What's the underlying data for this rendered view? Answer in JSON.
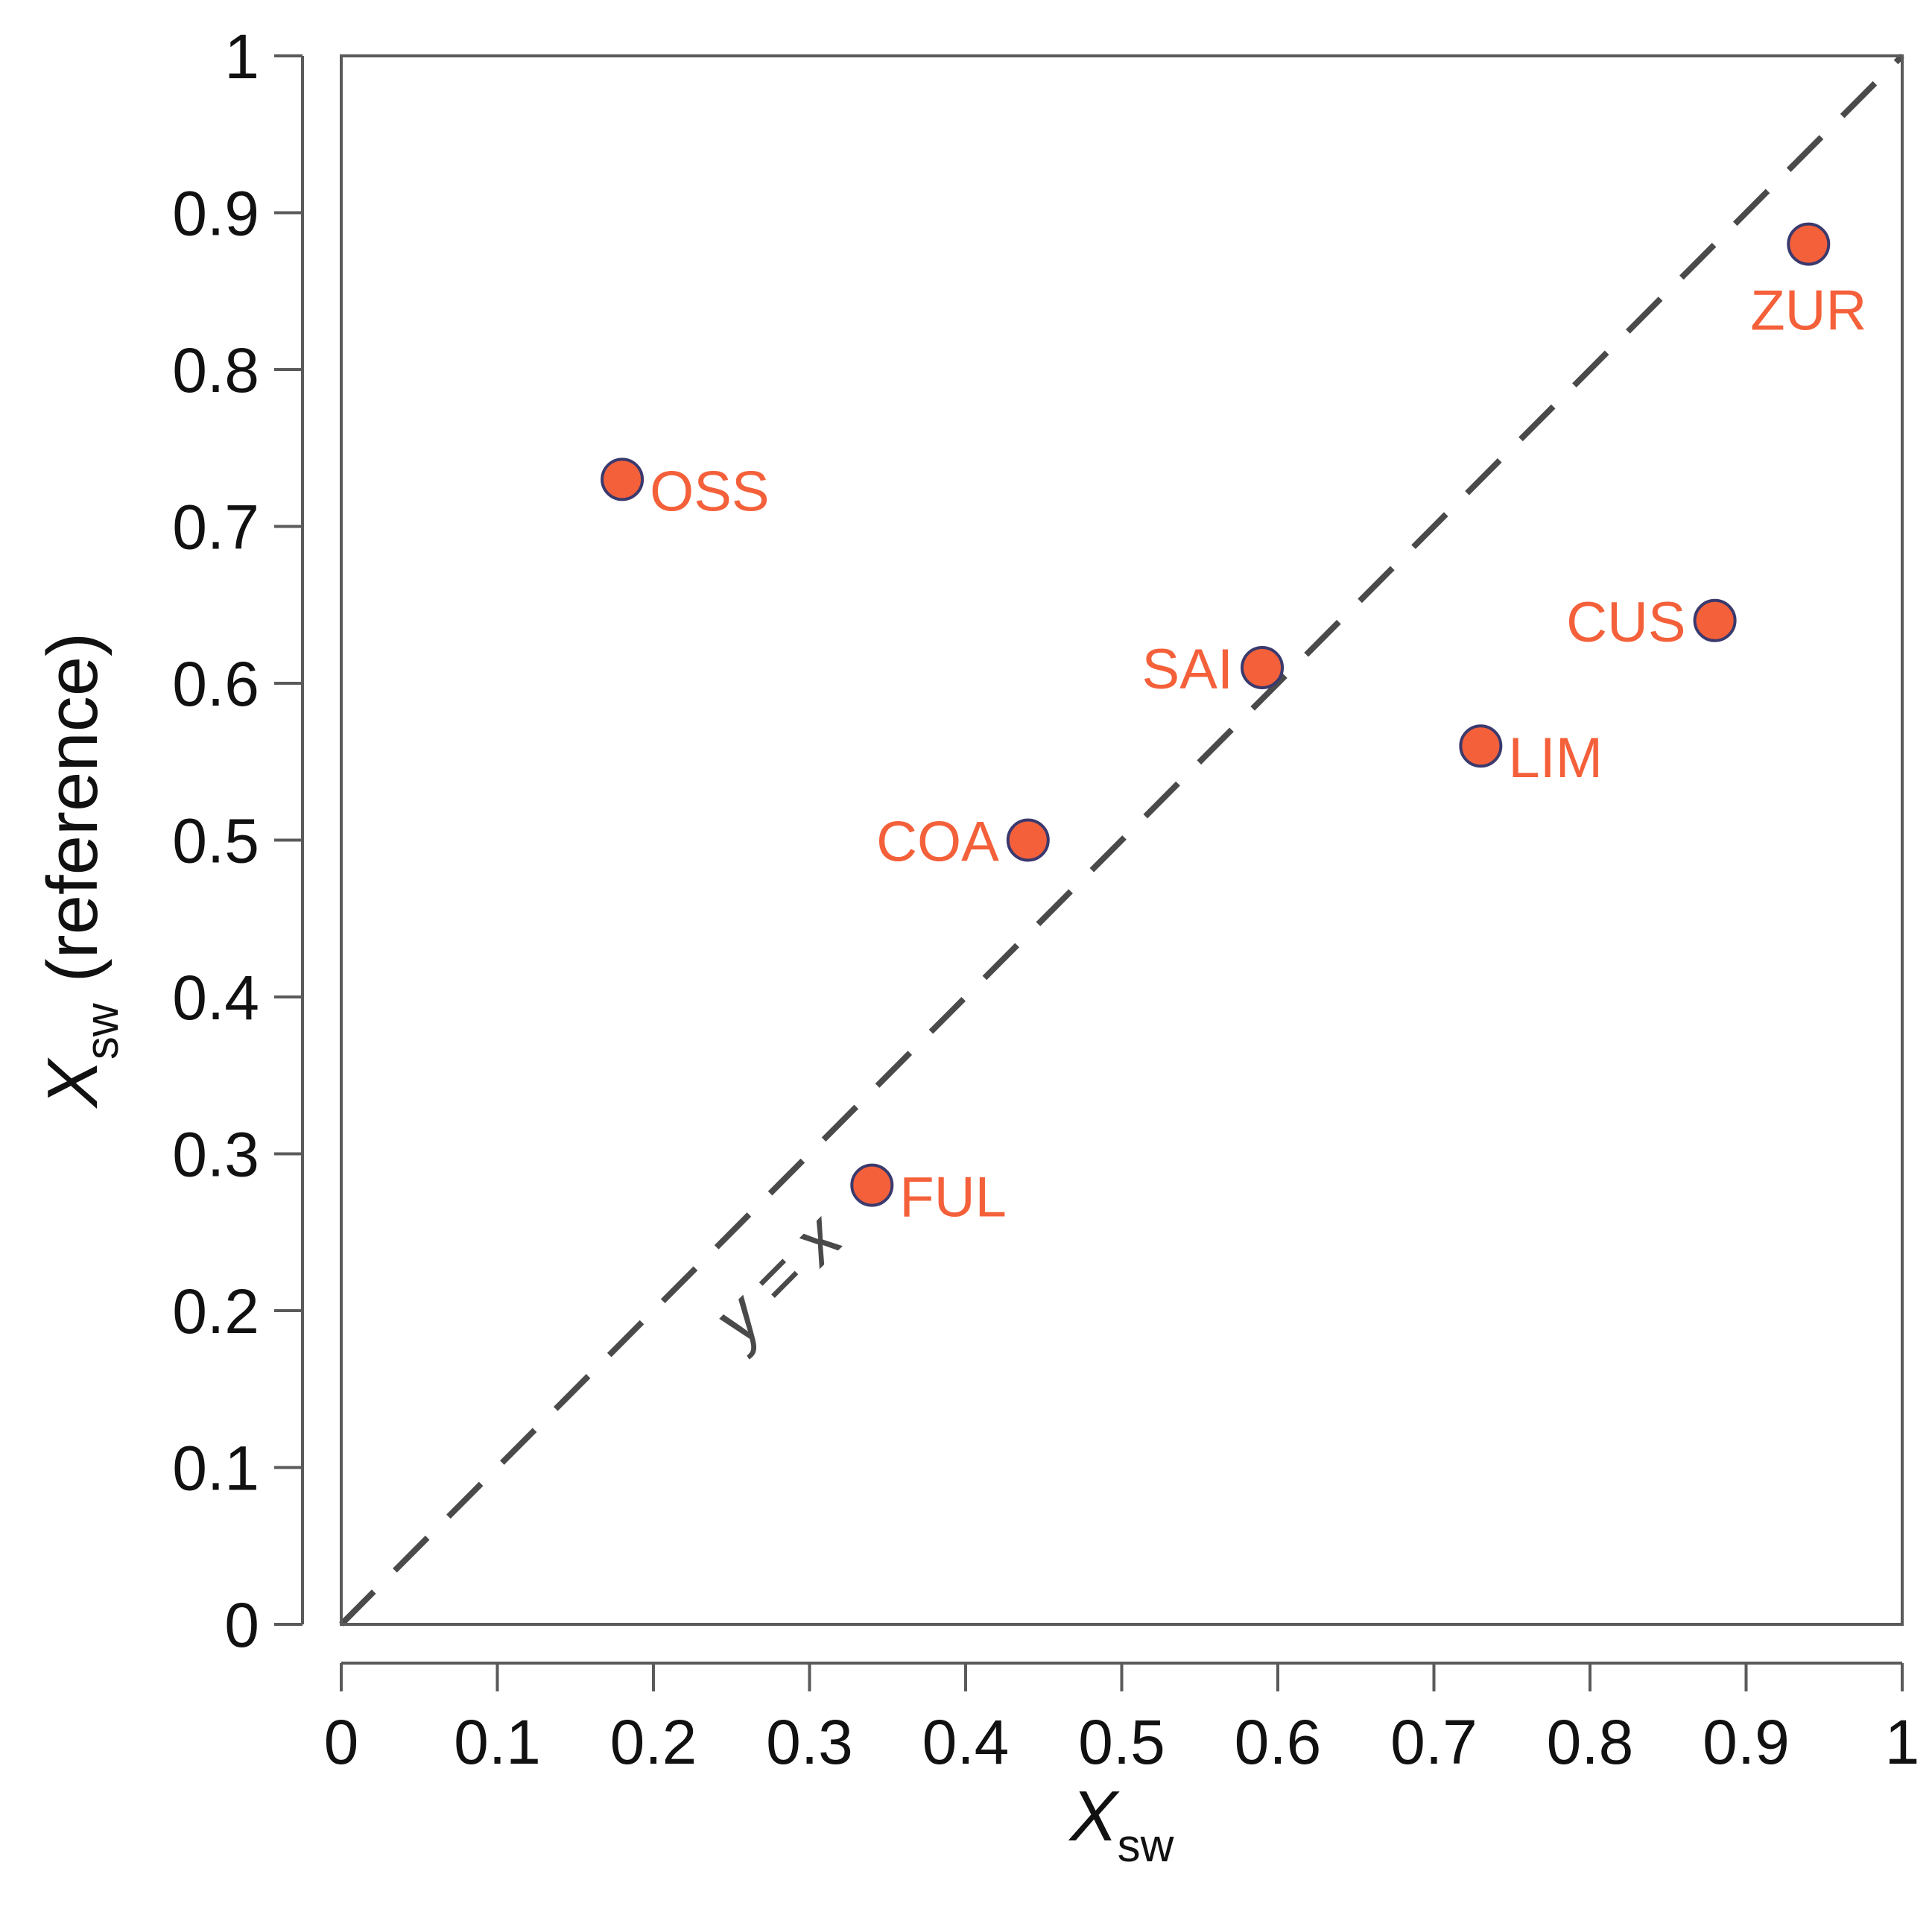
{
  "chart_data": {
    "type": "scatter",
    "title": "",
    "xlabel": {
      "symbol": "X",
      "subscript": "sw",
      "suffix": ""
    },
    "ylabel": {
      "symbol": "X",
      "subscript": "sw",
      "suffix": "(reference)"
    },
    "xlim": [
      0,
      1
    ],
    "ylim": [
      0,
      1
    ],
    "x_ticks": [
      0,
      0.1,
      0.2,
      0.3,
      0.4,
      0.5,
      0.6,
      0.7,
      0.8,
      0.9,
      1
    ],
    "y_ticks": [
      0,
      0.1,
      0.2,
      0.3,
      0.4,
      0.5,
      0.6,
      0.7,
      0.8,
      0.9,
      1
    ],
    "x_tick_labels": [
      "0",
      "0.1",
      "0.2",
      "0.3",
      "0.4",
      "0.5",
      "0.6",
      "0.7",
      "0.8",
      "0.9",
      "1"
    ],
    "y_tick_labels": [
      "0",
      "0.1",
      "0.2",
      "0.3",
      "0.4",
      "0.5",
      "0.6",
      "0.7",
      "0.8",
      "0.9",
      "1"
    ],
    "grid": false,
    "points": [
      {
        "label": "OSS",
        "x": 0.18,
        "y": 0.73,
        "label_side": "right"
      },
      {
        "label": "FUL",
        "x": 0.34,
        "y": 0.28,
        "label_side": "right"
      },
      {
        "label": "COA",
        "x": 0.44,
        "y": 0.5,
        "label_side": "left"
      },
      {
        "label": "SAI",
        "x": 0.59,
        "y": 0.61,
        "label_side": "left"
      },
      {
        "label": "LIM",
        "x": 0.73,
        "y": 0.56,
        "label_side": "right"
      },
      {
        "label": "CUS",
        "x": 0.88,
        "y": 0.64,
        "label_side": "left"
      },
      {
        "label": "ZUR",
        "x": 0.94,
        "y": 0.88,
        "label_side": "below"
      }
    ],
    "reference_line": {
      "label": "y = x",
      "x": [
        0,
        1
      ],
      "y": [
        0,
        1
      ],
      "style": "dashed"
    },
    "colors": {
      "point_fill": "#f4603a",
      "point_stroke": "#3a3a6e",
      "point_label": "#f4603a",
      "reference_line": "#4a4a4a",
      "axis": "#5a5a5a",
      "text": "#111111"
    }
  }
}
